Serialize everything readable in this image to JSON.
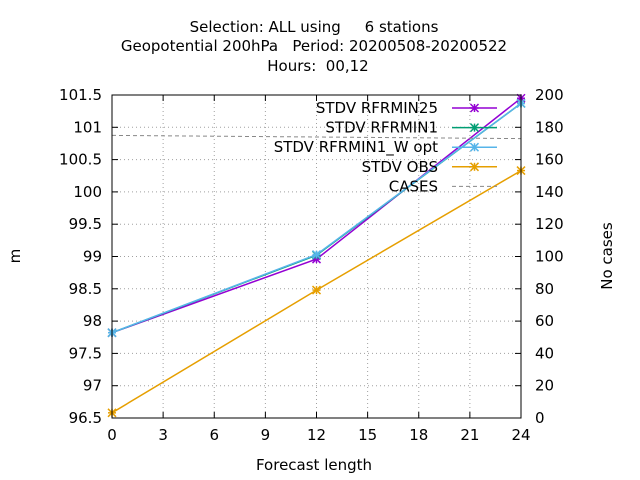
{
  "chart_data": {
    "type": "line",
    "title_lines": [
      "Selection: ALL using     6 stations",
      "Geopotential 200hPa   Period: 20200508-20200522",
      "Hours:  00,12"
    ],
    "xlabel": "Forecast length",
    "ylabel": "m",
    "y2label": "No cases",
    "x_ticks": [
      "0",
      "3",
      "6",
      "9",
      "12",
      "15",
      "18",
      "21",
      "24"
    ],
    "y_ticks": [
      "96.5",
      "97",
      "97.5",
      "98",
      "98.5",
      "99",
      "99.5",
      "100",
      "100.5",
      "101",
      "101.5"
    ],
    "y2_ticks": [
      "0",
      "20",
      "40",
      "60",
      "80",
      "100",
      "120",
      "140",
      "160",
      "180",
      "200"
    ],
    "xlim": [
      0,
      24
    ],
    "ylim": [
      96.5,
      101.5
    ],
    "y2lim": [
      0,
      200
    ],
    "grid": true,
    "legend_position": "top-right",
    "series": [
      {
        "name": "STDV RFRMIN25",
        "color": "#9400d3",
        "axis": "y",
        "marker": "x-star",
        "x": [
          0,
          12,
          24
        ],
        "y": [
          97.82,
          98.96,
          101.45
        ]
      },
      {
        "name": "STDV RFRMIN1",
        "color": "#009e73",
        "axis": "y",
        "marker": "x-star",
        "x": [
          0,
          12,
          24
        ],
        "y": [
          97.82,
          99.02,
          101.37
        ]
      },
      {
        "name": "STDV RFRMIN1_W opt",
        "color": "#56b4e9",
        "axis": "y",
        "marker": "x-star",
        "x": [
          0,
          12,
          24
        ],
        "y": [
          97.82,
          99.03,
          101.37
        ]
      },
      {
        "name": "STDV OBS",
        "color": "#e69f00",
        "axis": "y",
        "marker": "x-star",
        "x": [
          0,
          12,
          24
        ],
        "y": [
          96.58,
          98.48,
          100.33
        ]
      },
      {
        "name": "CASES",
        "color": "#888888",
        "axis": "y2",
        "dashed": true,
        "x": [
          0,
          12,
          24
        ],
        "y": [
          175,
          174,
          173
        ]
      }
    ]
  }
}
